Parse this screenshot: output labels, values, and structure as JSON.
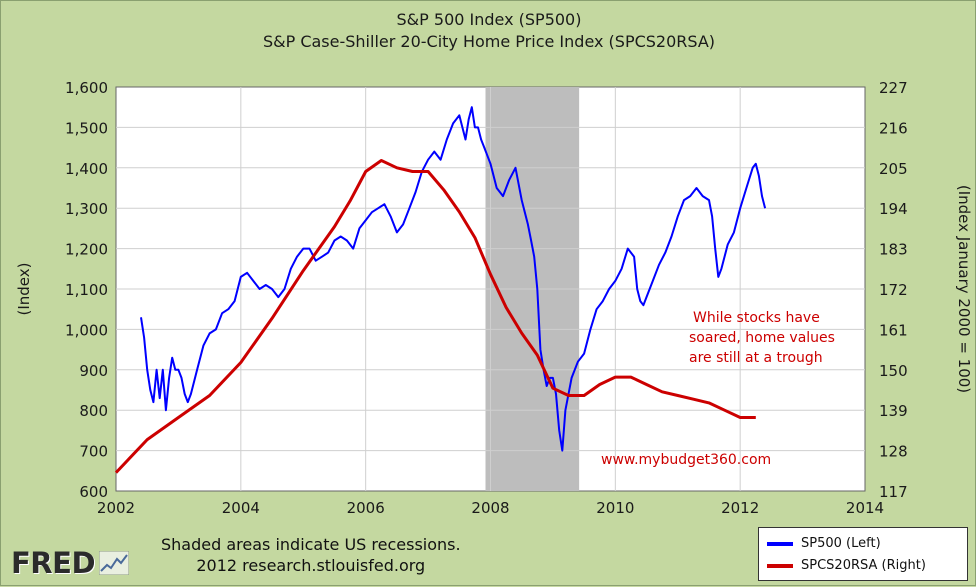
{
  "chart_data": {
    "type": "line",
    "title": "S&P 500 Index (SP500)",
    "subtitle": "S&P Case-Shiller 20-City Home Price Index (SPCS20RSA)",
    "ylabel_left": "(Index)",
    "ylabel_right": "(Index January 2000 = 100)",
    "xlim": [
      2002,
      2014
    ],
    "ylim_left": [
      600,
      1600
    ],
    "ylim_right": [
      117,
      227
    ],
    "x_ticks": [
      "2002",
      "2004",
      "2006",
      "2008",
      "2010",
      "2012",
      "2014"
    ],
    "y_ticks_left": [
      "600",
      "700",
      "800",
      "900",
      "1,000",
      "1,100",
      "1,200",
      "1,300",
      "1,400",
      "1,500",
      "1,600"
    ],
    "y_ticks_right": [
      "117",
      "128",
      "139",
      "150",
      "161",
      "172",
      "183",
      "194",
      "205",
      "216",
      "227"
    ],
    "recession": {
      "start": 2007.92,
      "end": 2009.42
    },
    "series": [
      {
        "name": "SP500",
        "axis": "left",
        "color": "#0000ff",
        "x": [
          2002.4,
          2002.45,
          2002.5,
          2002.55,
          2002.6,
          2002.65,
          2002.7,
          2002.75,
          2002.8,
          2002.85,
          2002.9,
          2002.95,
          2003.0,
          2003.05,
          2003.1,
          2003.15,
          2003.2,
          2003.3,
          2003.4,
          2003.5,
          2003.6,
          2003.7,
          2003.8,
          2003.9,
          2004.0,
          2004.1,
          2004.2,
          2004.3,
          2004.4,
          2004.5,
          2004.6,
          2004.7,
          2004.8,
          2004.9,
          2005.0,
          2005.1,
          2005.2,
          2005.3,
          2005.4,
          2005.5,
          2005.6,
          2005.7,
          2005.8,
          2005.9,
          2006.0,
          2006.1,
          2006.2,
          2006.3,
          2006.4,
          2006.5,
          2006.6,
          2006.7,
          2006.8,
          2006.9,
          2007.0,
          2007.1,
          2007.2,
          2007.3,
          2007.4,
          2007.5,
          2007.55,
          2007.6,
          2007.65,
          2007.7,
          2007.75,
          2007.8,
          2007.85,
          2007.9,
          2008.0,
          2008.1,
          2008.2,
          2008.3,
          2008.4,
          2008.5,
          2008.6,
          2008.65,
          2008.7,
          2008.75,
          2008.8,
          2008.85,
          2008.9,
          2008.95,
          2009.0,
          2009.05,
          2009.1,
          2009.15,
          2009.2,
          2009.3,
          2009.4,
          2009.5,
          2009.6,
          2009.7,
          2009.8,
          2009.9,
          2010.0,
          2010.1,
          2010.2,
          2010.3,
          2010.35,
          2010.4,
          2010.45,
          2010.5,
          2010.6,
          2010.7,
          2010.8,
          2010.9,
          2011.0,
          2011.1,
          2011.2,
          2011.3,
          2011.4,
          2011.5,
          2011.55,
          2011.6,
          2011.65,
          2011.7,
          2011.8,
          2011.9,
          2012.0,
          2012.1,
          2012.2,
          2012.25,
          2012.3,
          2012.35,
          2012.4
        ],
        "values": [
          1030,
          980,
          900,
          850,
          820,
          900,
          830,
          900,
          800,
          880,
          930,
          900,
          900,
          880,
          840,
          820,
          840,
          900,
          960,
          990,
          1000,
          1040,
          1050,
          1070,
          1130,
          1140,
          1120,
          1100,
          1110,
          1100,
          1080,
          1100,
          1150,
          1180,
          1200,
          1200,
          1170,
          1180,
          1190,
          1220,
          1230,
          1220,
          1200,
          1250,
          1270,
          1290,
          1300,
          1310,
          1280,
          1240,
          1260,
          1300,
          1340,
          1390,
          1420,
          1440,
          1420,
          1470,
          1510,
          1530,
          1500,
          1470,
          1520,
          1550,
          1500,
          1500,
          1470,
          1450,
          1410,
          1350,
          1330,
          1370,
          1400,
          1320,
          1260,
          1220,
          1180,
          1100,
          950,
          900,
          860,
          880,
          880,
          840,
          750,
          700,
          800,
          880,
          920,
          940,
          1000,
          1050,
          1070,
          1100,
          1120,
          1150,
          1200,
          1180,
          1100,
          1070,
          1060,
          1080,
          1120,
          1160,
          1190,
          1230,
          1280,
          1320,
          1330,
          1350,
          1330,
          1320,
          1280,
          1200,
          1130,
          1150,
          1210,
          1240,
          1300,
          1350,
          1400,
          1410,
          1380,
          1330,
          1300
        ]
      },
      {
        "name": "SPCS20RSA",
        "axis": "right",
        "color": "#cc0000",
        "x": [
          2002.0,
          2002.5,
          2003.0,
          2003.5,
          2004.0,
          2004.5,
          2005.0,
          2005.5,
          2005.75,
          2006.0,
          2006.25,
          2006.5,
          2006.75,
          2007.0,
          2007.25,
          2007.5,
          2007.75,
          2008.0,
          2008.25,
          2008.5,
          2008.75,
          2009.0,
          2009.25,
          2009.5,
          2009.75,
          2010.0,
          2010.25,
          2010.5,
          2010.75,
          2011.0,
          2011.25,
          2011.5,
          2011.75,
          2012.0,
          2012.25
        ],
        "values": [
          122,
          131,
          137,
          143,
          152,
          164,
          177,
          189,
          196,
          204,
          207,
          205,
          204,
          204,
          199,
          193,
          186,
          176,
          167,
          160,
          154,
          145,
          143,
          143,
          146,
          148,
          148,
          146,
          144,
          143,
          142,
          141,
          139,
          137,
          137
        ]
      }
    ],
    "annotations": [
      "While stocks have",
      "soared, home values",
      "are still at a trough",
      "www.mybudget360.com"
    ],
    "legend": [
      "SP500 (Left)",
      "SPCS20RSA (Right)"
    ]
  },
  "footer": {
    "note_line1": "Shaded areas indicate US recessions.",
    "note_line2": "2012 research.stlouisfed.org",
    "logo": "FRED"
  }
}
